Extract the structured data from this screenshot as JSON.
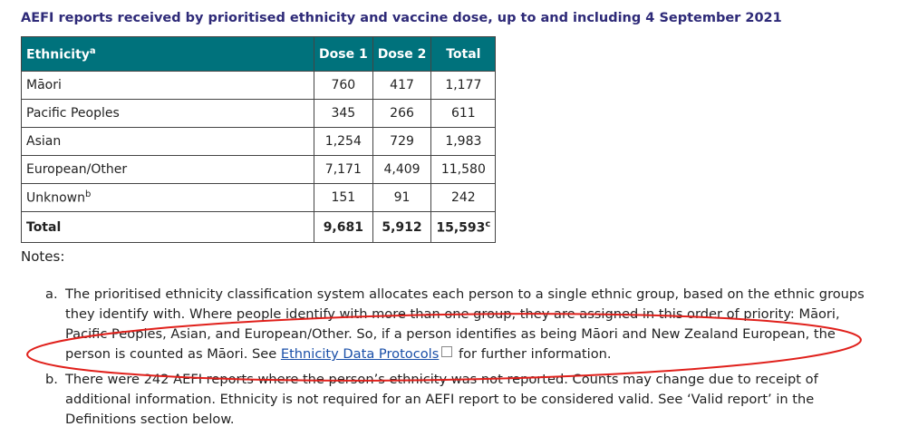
{
  "title": "AEFI reports received by prioritised ethnicity and vaccine dose, up to and including 4 September 2021",
  "table": {
    "header": [
      "Ethnicity",
      "Dose 1",
      "Dose 2",
      "Total"
    ],
    "header_sup": "a",
    "rows": [
      [
        "Māori",
        "760",
        "417",
        "1,177"
      ],
      [
        "Pacific Peoples",
        "345",
        "266",
        "611"
      ],
      [
        "Asian",
        "1,254",
        "729",
        "1,983"
      ],
      [
        "European/Other",
        "7,171",
        "4,409",
        "11,580"
      ],
      [
        "Unknown",
        "151",
        "91",
        "242"
      ]
    ],
    "unknown_sup": "b",
    "total": [
      "Total",
      "9,681",
      "5,912",
      "15,593"
    ],
    "total_sup": "c"
  },
  "notes": {
    "heading": "Notes:",
    "items": [
      {
        "marker": "a.",
        "text": "The prioritised ethnicity classification system allocates each person to a single ethnic group, based on the ethnic groups they identify with. Where people identify with more than one group, they are assigned in this order of priority: Māori, Pacific Peoples, Asian, and European/Other. So, if a person identifies as being Māori and New Zealand European, the person is counted as Māori. See ",
        "link": "Ethnicity Data Protocols",
        "after": " for further information."
      },
      {
        "marker": "b.",
        "text": "There were 242 AEFI reports where the person’s ethnicity was not reported. Counts may change due to receipt of additional information. Ethnicity is not required for an AEFI report to be considered valid. See ‘Valid report’ in the Definitions section below."
      }
    ]
  }
}
